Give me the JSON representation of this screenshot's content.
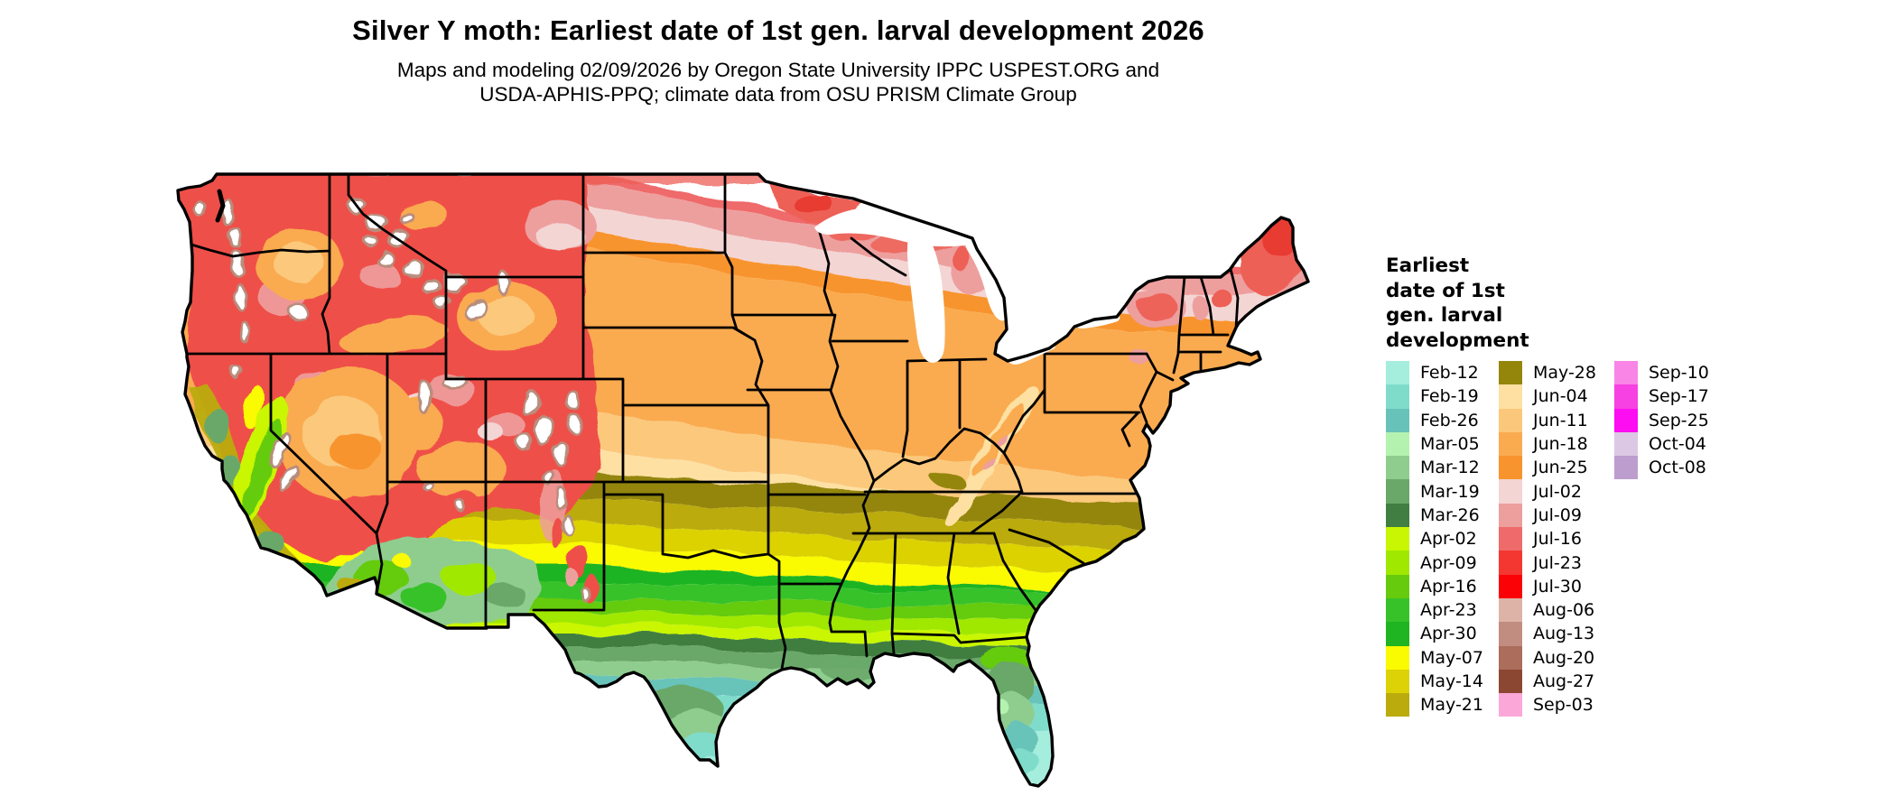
{
  "title": "Silver Y moth: Earliest date of 1st gen. larval development 2026",
  "subtitle_line1": "Maps and modeling 02/09/2026 by Oregon State University IPPC USPEST.ORG and",
  "subtitle_line2": "USDA-APHIS-PPQ; climate data from OSU PRISM Climate Group",
  "legend": {
    "title_lines": [
      "Earliest",
      "date of 1st",
      "gen. larval",
      "development"
    ],
    "columns": [
      {
        "items": [
          {
            "label": "Feb-12",
            "color": "#A5EDDC"
          },
          {
            "label": "Feb-19",
            "color": "#7FDCCB"
          },
          {
            "label": "Feb-26",
            "color": "#67C3B9"
          },
          {
            "label": "Mar-05",
            "color": "#B4F2B0"
          },
          {
            "label": "Mar-12",
            "color": "#8FCD8F"
          },
          {
            "label": "Mar-19",
            "color": "#69A869"
          },
          {
            "label": "Mar-26",
            "color": "#417E41"
          },
          {
            "label": "Apr-02",
            "color": "#C9F602"
          },
          {
            "label": "Apr-09",
            "color": "#A0E800"
          },
          {
            "label": "Apr-16",
            "color": "#65CB0C"
          },
          {
            "label": "Apr-23",
            "color": "#38C229"
          },
          {
            "label": "Apr-30",
            "color": "#1FB421"
          },
          {
            "label": "May-07",
            "color": "#FAFA00"
          },
          {
            "label": "May-14",
            "color": "#DCD205"
          },
          {
            "label": "May-21",
            "color": "#BBAB0C"
          }
        ]
      },
      {
        "items": [
          {
            "label": "May-28",
            "color": "#94860B"
          },
          {
            "label": "Jun-04",
            "color": "#FDE0A2"
          },
          {
            "label": "Jun-11",
            "color": "#FBC87B"
          },
          {
            "label": "Jun-18",
            "color": "#FAAB50"
          },
          {
            "label": "Jun-25",
            "color": "#F8942D"
          },
          {
            "label": "Jul-02",
            "color": "#F3D5D4"
          },
          {
            "label": "Jul-09",
            "color": "#ED9F9E"
          },
          {
            "label": "Jul-16",
            "color": "#EF6B6B"
          },
          {
            "label": "Jul-23",
            "color": "#F53732"
          },
          {
            "label": "Jul-30",
            "color": "#FB0207"
          },
          {
            "label": "Aug-06",
            "color": "#DDB3A8"
          },
          {
            "label": "Aug-13",
            "color": "#C18D80"
          },
          {
            "label": "Aug-20",
            "color": "#AC6D5C"
          },
          {
            "label": "Aug-27",
            "color": "#8C4733"
          },
          {
            "label": "Sep-03",
            "color": "#FBA8D8"
          }
        ]
      },
      {
        "items": [
          {
            "label": "Sep-10",
            "color": "#F985E7"
          },
          {
            "label": "Sep-17",
            "color": "#F741E2"
          },
          {
            "label": "Sep-25",
            "color": "#FC0DF2"
          },
          {
            "label": "Oct-04",
            "color": "#DCC8E4"
          },
          {
            "label": "Oct-08",
            "color": "#BC9DCE"
          }
        ]
      }
    ]
  },
  "map": {
    "kind": "choropleth",
    "region_shown": "Continental United States"
  }
}
